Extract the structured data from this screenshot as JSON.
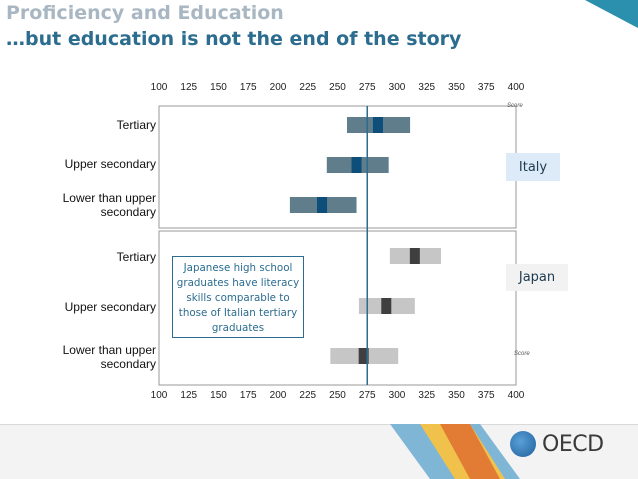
{
  "header": {
    "title": "Proficiency and Education",
    "subtitle": "…but education is not the end of the story"
  },
  "rows": {
    "italy": [
      "Tertiary",
      "Upper secondary",
      "Lower than upper secondary"
    ],
    "japan": [
      "Tertiary",
      "Upper secondary",
      "Lower than upper secondary"
    ]
  },
  "countries": {
    "italy": "Italy",
    "japan": "Japan"
  },
  "annotation": "Japanese high school graduates have literacy skills comparable to those of Italian tertiary graduates",
  "score_label": "Score",
  "footer": {
    "logo_text": "OECD"
  },
  "colors": {
    "italy_outer": "#5f7d8b",
    "italy_mean": "#0d4f7a",
    "japan_outer": "#c6c6c6",
    "japan_mean": "#3f3f3f",
    "reference_line": "#2b6c8f",
    "title_grey": "#a9b7c2",
    "title_blue": "#2b6c8f"
  },
  "chart_data": {
    "type": "range_bar",
    "xlim": [
      100,
      400
    ],
    "ticks": [
      100,
      125,
      150,
      175,
      200,
      225,
      250,
      275,
      300,
      325,
      350,
      375,
      400
    ],
    "reference_line": 275,
    "panels": [
      {
        "name": "Italy",
        "rows": [
          {
            "label": "Tertiary",
            "low": 258,
            "high": 311,
            "mean": 284
          },
          {
            "label": "Upper secondary",
            "low": 241,
            "high": 293,
            "mean": 266
          },
          {
            "label": "Lower than upper secondary",
            "low": 210,
            "high": 266,
            "mean": 237
          }
        ]
      },
      {
        "name": "Japan",
        "rows": [
          {
            "label": "Tertiary",
            "low": 294,
            "high": 337,
            "mean": 315
          },
          {
            "label": "Upper secondary",
            "low": 268,
            "high": 315,
            "mean": 291
          },
          {
            "label": "Lower than upper secondary",
            "low": 244,
            "high": 301,
            "mean": 272
          }
        ]
      }
    ]
  }
}
